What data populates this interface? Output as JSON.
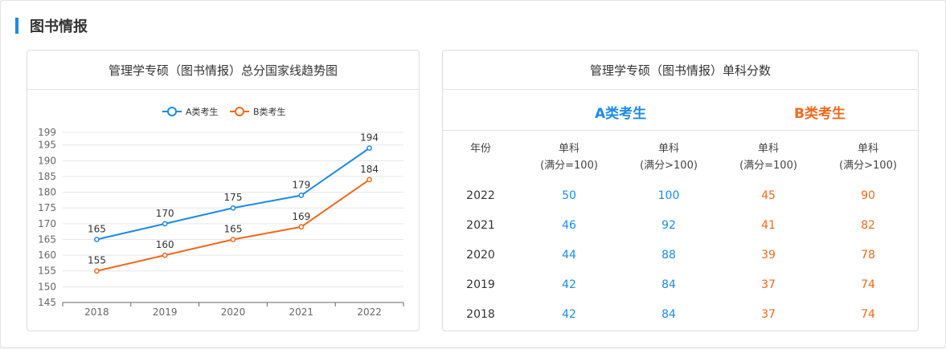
{
  "section": {
    "title": "图书情报"
  },
  "chart_card": {
    "title": "管理学专硕（图书情报）总分国家线趋势图"
  },
  "chart_data": {
    "type": "line",
    "title": "管理学专硕（图书情报）总分国家线趋势图",
    "categories": [
      "2018",
      "2019",
      "2020",
      "2021",
      "2022"
    ],
    "series": [
      {
        "name": "A类考生",
        "values": [
          165,
          170,
          175,
          179,
          194
        ],
        "color": "#1c8ae8"
      },
      {
        "name": "B类考生",
        "values": [
          155,
          160,
          165,
          169,
          184
        ],
        "color": "#ee6a1d"
      }
    ],
    "y_ticks": [
      145,
      150,
      155,
      160,
      165,
      170,
      175,
      180,
      185,
      190,
      195,
      199
    ],
    "ylim": [
      145,
      199
    ],
    "legend": "top-center",
    "grid": true
  },
  "table_card": {
    "title": "管理学专硕（图书情报）单科分数",
    "group_a": "A类考生",
    "group_b": "B类考生",
    "col_year": "年份",
    "col_headers": [
      {
        "line1": "单科",
        "line2": "(满分=100)"
      },
      {
        "line1": "单科",
        "line2": "(满分>100)"
      },
      {
        "line1": "单科",
        "line2": "(满分=100)"
      },
      {
        "line1": "单科",
        "line2": "(满分>100)"
      }
    ],
    "rows": [
      {
        "year": "2022",
        "a1": "50",
        "a2": "100",
        "b1": "45",
        "b2": "90"
      },
      {
        "year": "2021",
        "a1": "46",
        "a2": "92",
        "b1": "41",
        "b2": "82"
      },
      {
        "year": "2020",
        "a1": "44",
        "a2": "88",
        "b1": "39",
        "b2": "78"
      },
      {
        "year": "2019",
        "a1": "42",
        "a2": "84",
        "b1": "37",
        "b2": "74"
      },
      {
        "year": "2018",
        "a1": "42",
        "a2": "84",
        "b1": "37",
        "b2": "74"
      }
    ]
  },
  "colors": {
    "accent_blue": "#1c8ae8",
    "accent_orange": "#ee6a1d"
  }
}
